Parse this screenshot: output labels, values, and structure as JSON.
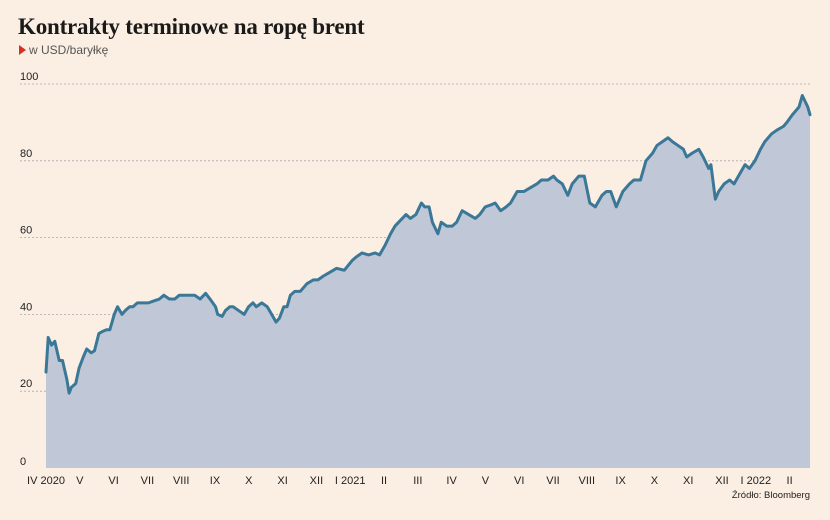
{
  "title": "Kontrakty terminowe na ropę brent",
  "subtitle": "w USD/baryłkę",
  "source": "Źródło: Bloomberg",
  "colors": {
    "background": "#fbefe3",
    "line": "#3b7898",
    "area": "#c0c7d6",
    "grid": "#a9a9a9"
  },
  "chart_data": {
    "type": "area",
    "title": "Kontrakty terminowe na ropę brent",
    "ylabel": "w USD/baryłkę",
    "xlabel": "",
    "ylim": [
      0,
      100
    ],
    "yticks": [
      0,
      20,
      40,
      60,
      80,
      100
    ],
    "grid": true,
    "x_tick_labels": [
      "IV 2020",
      "V",
      "VI",
      "VII",
      "VIII",
      "IX",
      "X",
      "XI",
      "XII",
      "I 2021",
      "II",
      "III",
      "IV",
      "V",
      "VI",
      "VII",
      "VIII",
      "IX",
      "X",
      "XI",
      "XII",
      "I 2022",
      "II"
    ],
    "series": [
      {
        "x": [
          "2020-04-01",
          "2020-04-03",
          "2020-04-06",
          "2020-04-09",
          "2020-04-13",
          "2020-04-16",
          "2020-04-20",
          "2020-04-22",
          "2020-04-24",
          "2020-04-28",
          "2020-05-01",
          "2020-05-05",
          "2020-05-08",
          "2020-05-12",
          "2020-05-15",
          "2020-05-19",
          "2020-05-22",
          "2020-05-26",
          "2020-05-29",
          "2020-06-02",
          "2020-06-05",
          "2020-06-09",
          "2020-06-12",
          "2020-06-16",
          "2020-06-19",
          "2020-06-23",
          "2020-06-26",
          "2020-06-30",
          "2020-07-03",
          "2020-07-08",
          "2020-07-13",
          "2020-07-17",
          "2020-07-22",
          "2020-07-27",
          "2020-07-31",
          "2020-08-05",
          "2020-08-10",
          "2020-08-14",
          "2020-08-19",
          "2020-08-24",
          "2020-08-28",
          "2020-09-02",
          "2020-09-04",
          "2020-09-08",
          "2020-09-11",
          "2020-09-15",
          "2020-09-18",
          "2020-09-23",
          "2020-09-28",
          "2020-10-02",
          "2020-10-06",
          "2020-10-09",
          "2020-10-14",
          "2020-10-19",
          "2020-10-23",
          "2020-10-27",
          "2020-10-30",
          "2020-11-03",
          "2020-11-06",
          "2020-11-09",
          "2020-11-13",
          "2020-11-18",
          "2020-11-24",
          "2020-11-30",
          "2020-12-04",
          "2020-12-09",
          "2020-12-15",
          "2020-12-21",
          "2020-12-28",
          "2021-01-04",
          "2021-01-08",
          "2021-01-13",
          "2021-01-19",
          "2021-01-25",
          "2021-01-29",
          "2021-02-03",
          "2021-02-08",
          "2021-02-12",
          "2021-02-17",
          "2021-02-22",
          "2021-02-26",
          "2021-03-03",
          "2021-03-08",
          "2021-03-11",
          "2021-03-15",
          "2021-03-18",
          "2021-03-23",
          "2021-03-26",
          "2021-03-31",
          "2021-04-05",
          "2021-04-09",
          "2021-04-14",
          "2021-04-20",
          "2021-04-26",
          "2021-04-30",
          "2021-05-05",
          "2021-05-10",
          "2021-05-14",
          "2021-05-19",
          "2021-05-24",
          "2021-05-28",
          "2021-06-03",
          "2021-06-09",
          "2021-06-15",
          "2021-06-21",
          "2021-06-25",
          "2021-07-01",
          "2021-07-06",
          "2021-07-09",
          "2021-07-14",
          "2021-07-19",
          "2021-07-23",
          "2021-07-29",
          "2021-08-03",
          "2021-08-08",
          "2021-08-13",
          "2021-08-19",
          "2021-08-23",
          "2021-08-27",
          "2021-09-01",
          "2021-09-07",
          "2021-09-13",
          "2021-09-17",
          "2021-09-23",
          "2021-09-28",
          "2021-10-04",
          "2021-10-08",
          "2021-10-13",
          "2021-10-18",
          "2021-10-22",
          "2021-10-27",
          "2021-11-01",
          "2021-11-04",
          "2021-11-09",
          "2021-11-15",
          "2021-11-19",
          "2021-11-24",
          "2021-11-26",
          "2021-11-30",
          "2021-12-03",
          "2021-12-08",
          "2021-12-13",
          "2021-12-17",
          "2021-12-21",
          "2021-12-27",
          "2021-12-31",
          "2022-01-05",
          "2022-01-10",
          "2022-01-14",
          "2022-01-20",
          "2022-01-25",
          "2022-01-31",
          "2022-02-03",
          "2022-02-08",
          "2022-02-11",
          "2022-02-14",
          "2022-02-17",
          "2022-02-22",
          "2022-02-24"
        ],
        "values": [
          25,
          34,
          32,
          33,
          28,
          28,
          23,
          19.5,
          21,
          22,
          26,
          29,
          31,
          30,
          30.5,
          35,
          35.5,
          36,
          36,
          40,
          42,
          40,
          41,
          42,
          42,
          43,
          43,
          43,
          43,
          43.5,
          44,
          45,
          44,
          44,
          45,
          45,
          45,
          45,
          44,
          45.5,
          44,
          42,
          40,
          39.5,
          41,
          42,
          42,
          41,
          40,
          42,
          43,
          42,
          43,
          42,
          40,
          38,
          39,
          42,
          42,
          45,
          46,
          46,
          48,
          49,
          49,
          50,
          51,
          52,
          51.5,
          54,
          55,
          56,
          55.5,
          56,
          55.5,
          58,
          61,
          63,
          64.5,
          66,
          65,
          66,
          69,
          68,
          68,
          64,
          61,
          64,
          63,
          63,
          64,
          67,
          66,
          65,
          66,
          68,
          68.5,
          69,
          67,
          68,
          69,
          72,
          72,
          73,
          74,
          75,
          75,
          76,
          75,
          74,
          71,
          74,
          76,
          76,
          69,
          68,
          71,
          72,
          72,
          68,
          72,
          74,
          75,
          75,
          80,
          82,
          84,
          85,
          86,
          85,
          84,
          83,
          81,
          82,
          83,
          81,
          78,
          79,
          70,
          72,
          74,
          75,
          74,
          76,
          79,
          78,
          80,
          83,
          85,
          87,
          88,
          89,
          90,
          92,
          93,
          94,
          97,
          94,
          92
        ]
      }
    ]
  }
}
